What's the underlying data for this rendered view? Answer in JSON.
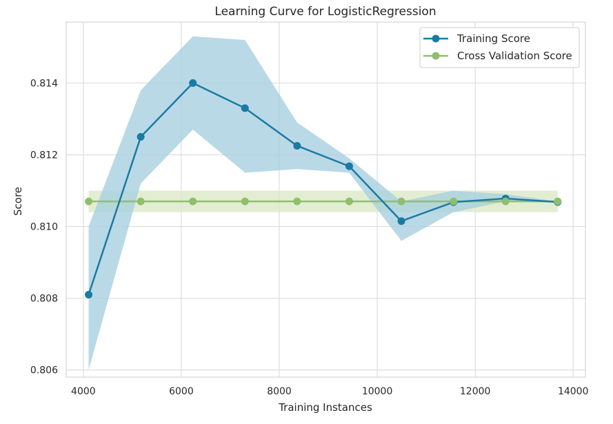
{
  "chart_data": {
    "type": "line",
    "title": "Learning Curve for LogisticRegression",
    "xlabel": "Training Instances",
    "ylabel": "Score",
    "xlim": [
      3650,
      14250
    ],
    "ylim": [
      0.8058,
      0.8157
    ],
    "xticks": [
      4000,
      6000,
      8000,
      10000,
      12000,
      14000
    ],
    "yticks": [
      0.806,
      0.808,
      0.81,
      0.812,
      0.814
    ],
    "xtick_labels": [
      "4000",
      "6000",
      "8000",
      "10000",
      "12000",
      "14000"
    ],
    "ytick_labels": [
      "0.806",
      "0.808",
      "0.810",
      "0.812",
      "0.814"
    ],
    "grid": true,
    "legend_position": "top-right",
    "x": [
      4108,
      5172,
      6236,
      7300,
      8364,
      9428,
      10492,
      11556,
      12620,
      13684
    ],
    "series": [
      {
        "name": "Training Score",
        "color": "#1a7aa3",
        "band_color": "#a9cfe0",
        "values": [
          0.8081,
          0.8125,
          0.814,
          0.8133,
          0.81225,
          0.81168,
          0.81015,
          0.81068,
          0.81078,
          0.81068
        ],
        "band_upper": [
          0.81,
          0.8138,
          0.8153,
          0.8152,
          0.8129,
          0.8119,
          0.8107,
          0.811,
          0.8109,
          0.8107
        ],
        "band_lower": [
          0.806,
          0.8112,
          0.8127,
          0.8115,
          0.8116,
          0.8115,
          0.8096,
          0.8104,
          0.8107,
          0.8107
        ]
      },
      {
        "name": "Cross Validation Score",
        "color": "#8fbf6b",
        "band_color": "#dbe8c8",
        "values": [
          0.8107,
          0.8107,
          0.8107,
          0.8107,
          0.8107,
          0.8107,
          0.8107,
          0.8107,
          0.8107,
          0.8107
        ],
        "band_upper": [
          0.811,
          0.811,
          0.811,
          0.811,
          0.811,
          0.811,
          0.811,
          0.811,
          0.811,
          0.811
        ],
        "band_lower": [
          0.8104,
          0.8104,
          0.8104,
          0.8104,
          0.8104,
          0.8104,
          0.8104,
          0.8104,
          0.8104,
          0.8104
        ]
      }
    ]
  }
}
